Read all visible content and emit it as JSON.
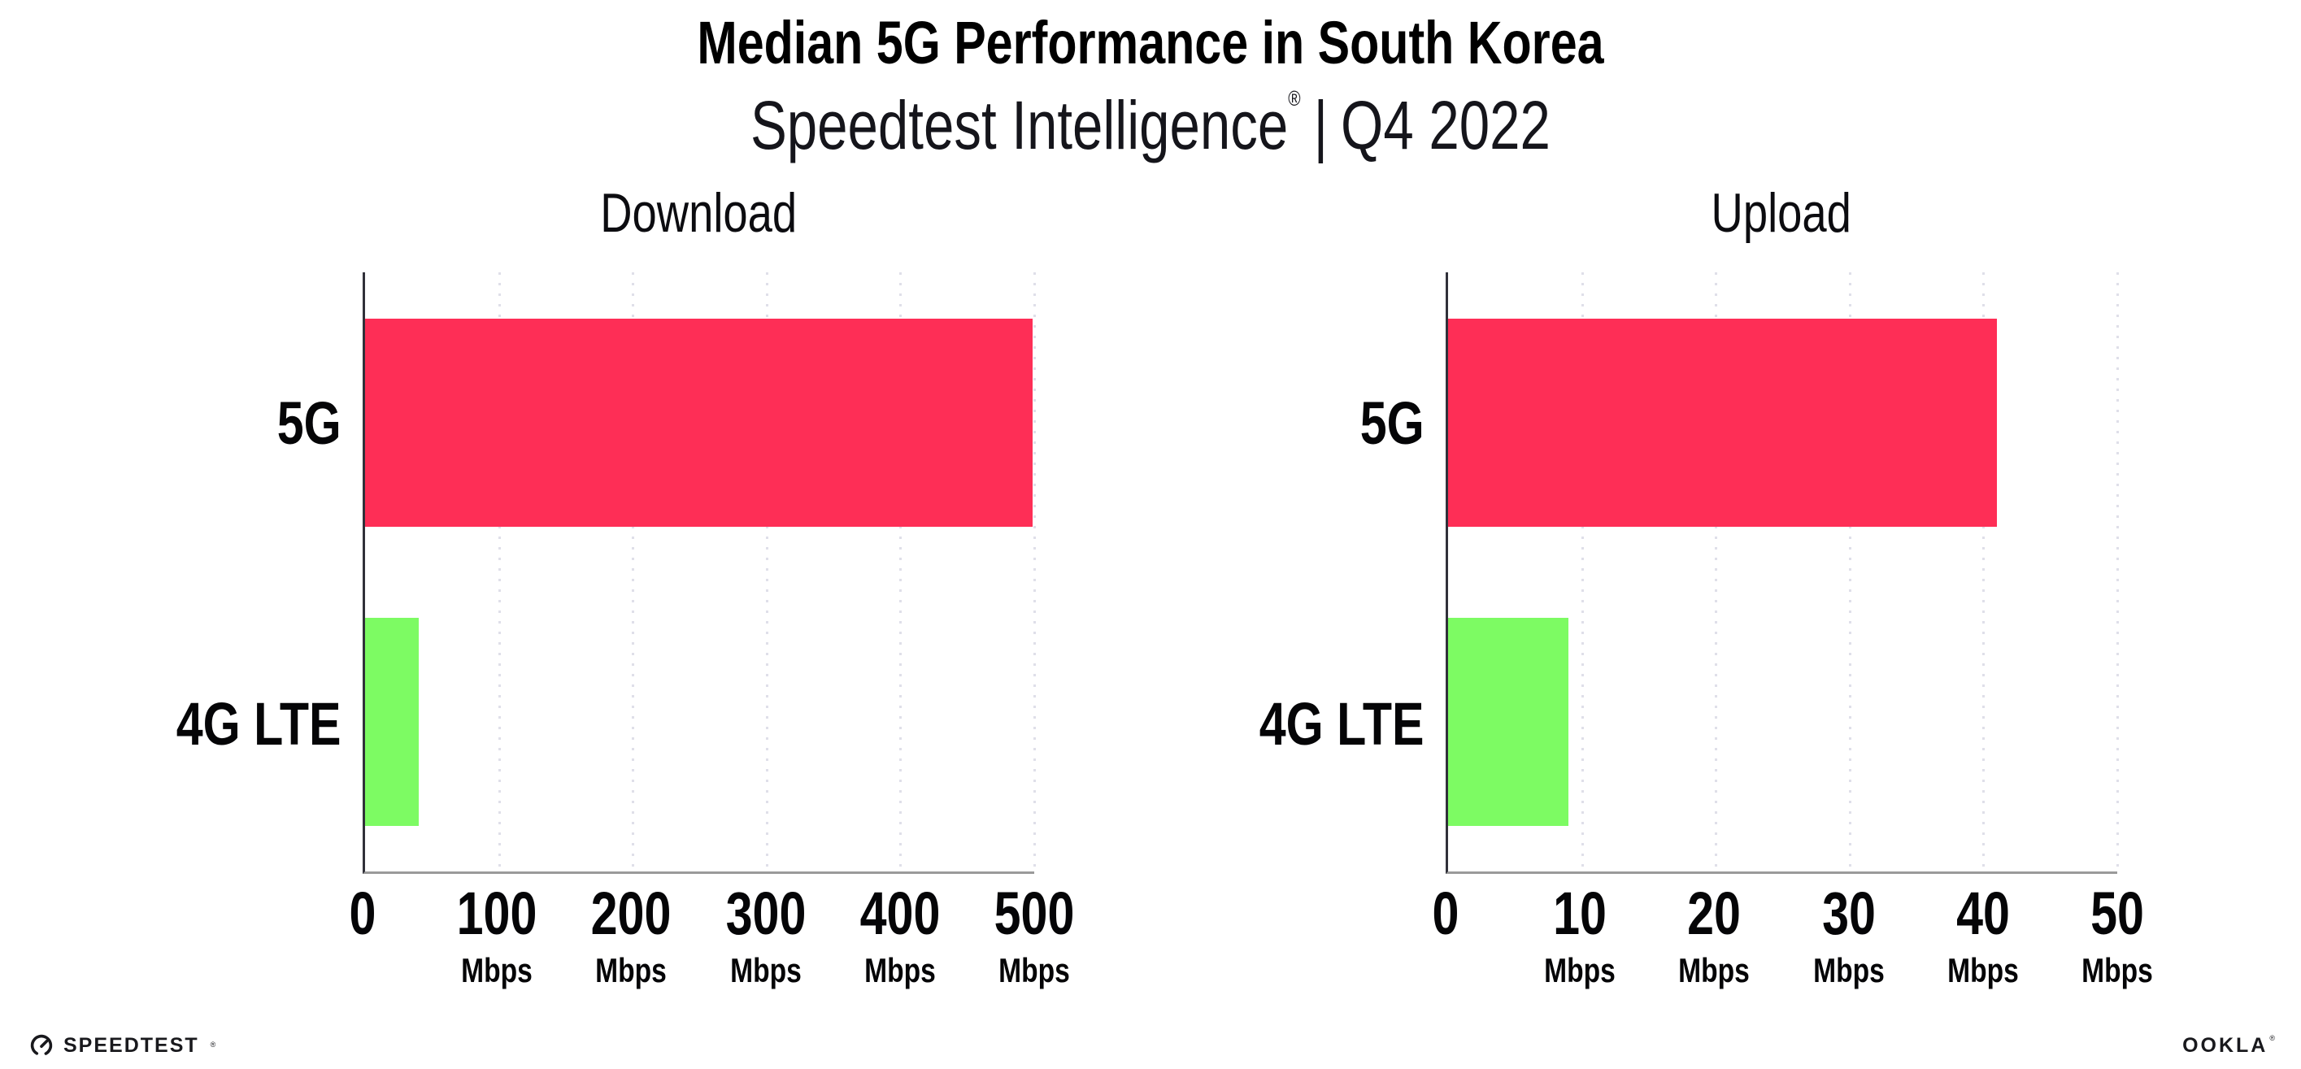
{
  "header": {
    "title": "Median 5G Performance in South Korea",
    "subtitle_brand": "Speedtest Intelligence",
    "registered_mark": "®",
    "subtitle_divider": "|",
    "subtitle_period": "Q4 2022"
  },
  "chart_data": [
    {
      "type": "bar",
      "orientation": "horizontal",
      "title": "Download",
      "categories": [
        "5G",
        "4G LTE"
      ],
      "values": [
        499,
        40
      ],
      "unit": "Mbps",
      "xlim": [
        0,
        500
      ],
      "xticks": [
        0,
        100,
        200,
        300,
        400,
        500
      ],
      "grid": "dotted-vertical",
      "legend": "none",
      "bar_colors": [
        "#FE2E56",
        "#7DFB63"
      ]
    },
    {
      "type": "bar",
      "orientation": "horizontal",
      "title": "Upload",
      "categories": [
        "5G",
        "4G LTE"
      ],
      "values": [
        41,
        9
      ],
      "unit": "Mbps",
      "xlim": [
        0,
        50
      ],
      "xticks": [
        0,
        10,
        20,
        30,
        40,
        50
      ],
      "grid": "dotted-vertical",
      "legend": "none",
      "bar_colors": [
        "#FE2E56",
        "#7DFB63"
      ]
    }
  ],
  "style_colors": {
    "bar_5g": "#FE2E56",
    "bar_4g_lte": "#7DFB63",
    "gridline": "#DFDFE9",
    "y_axis": "#31313A",
    "x_axis": "#9A9A9A",
    "background": "#FFFFFF"
  },
  "footer": {
    "speedtest_wordmark": "SPEEDTEST",
    "speedtest_mark": "®",
    "ookla_wordmark": "OOKLA",
    "ookla_mark": "®"
  }
}
